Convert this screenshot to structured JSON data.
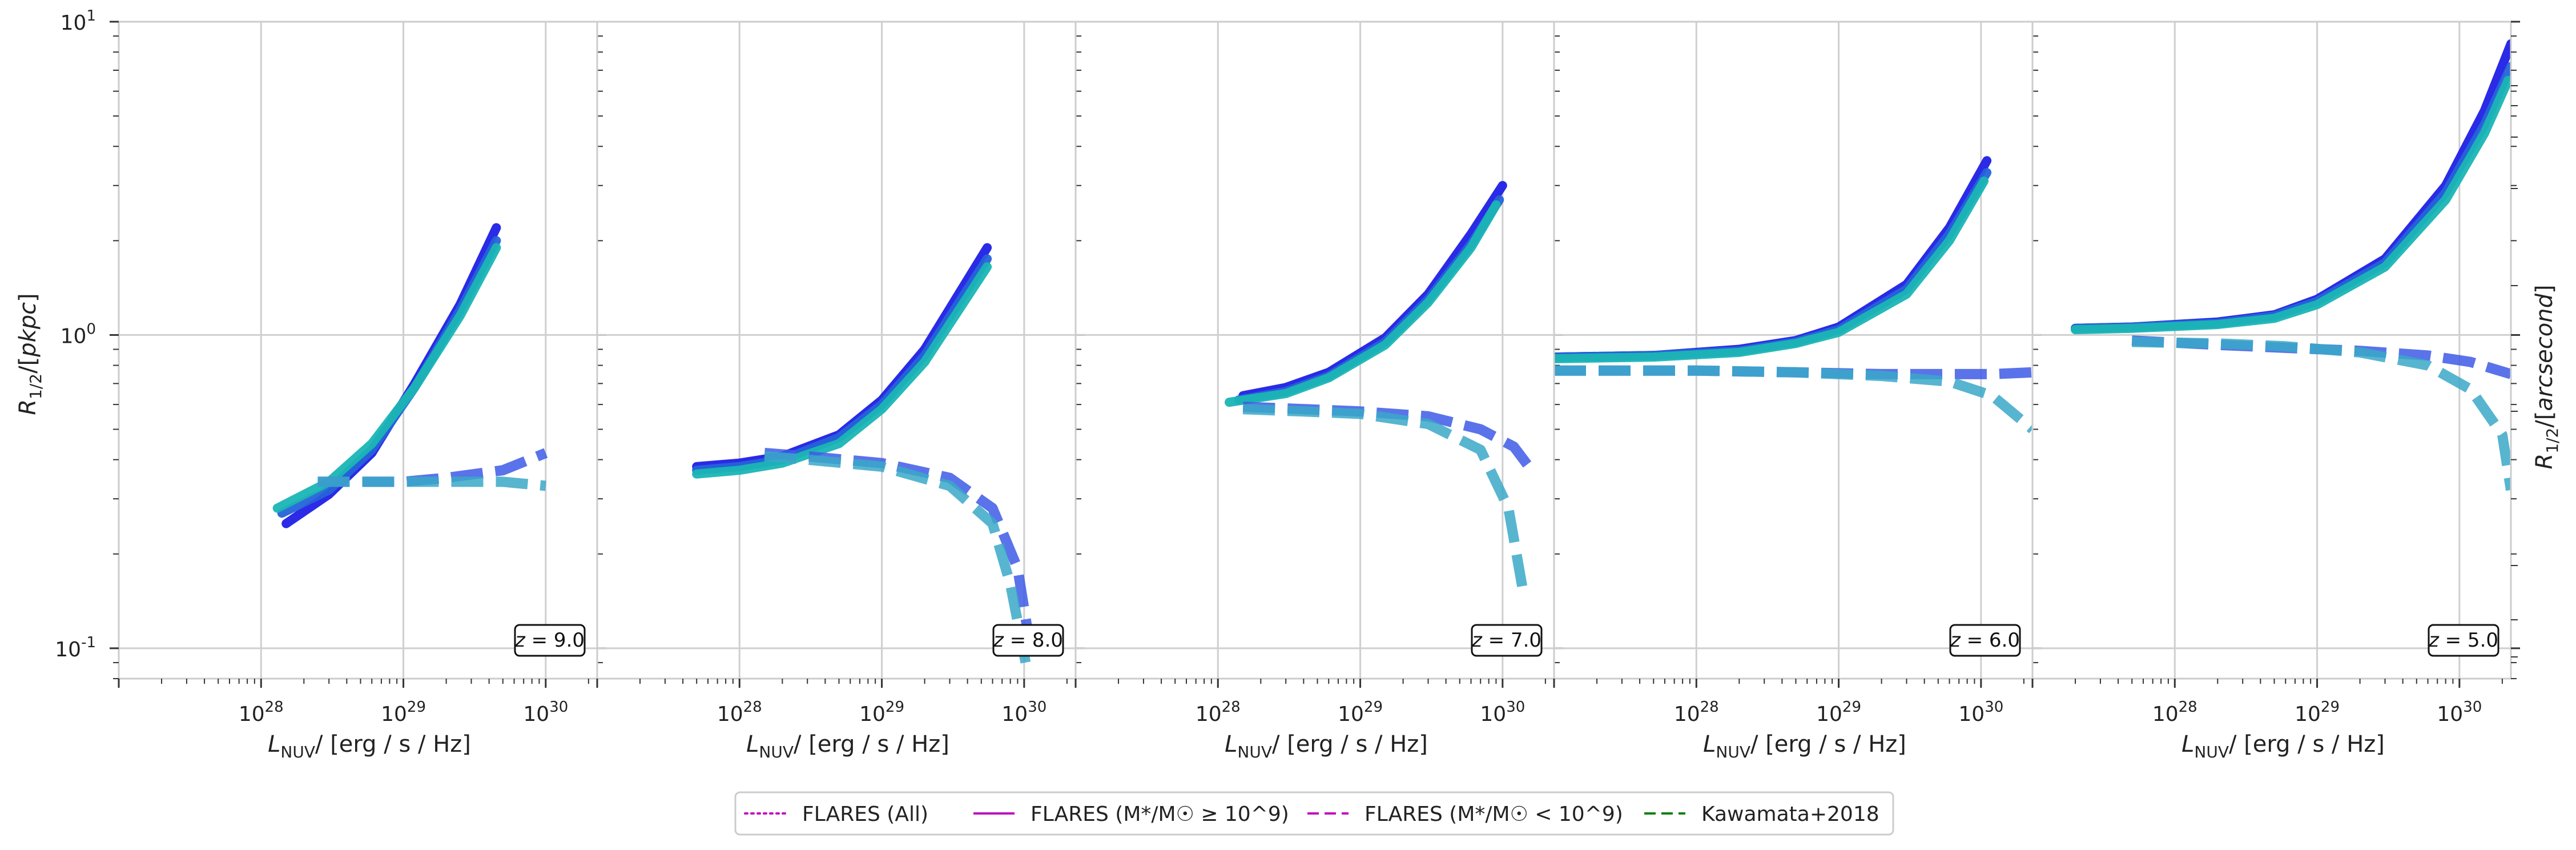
{
  "figure": {
    "ylabel_left": "R_1/2/[pkpc]",
    "ylabel_right": "R_1/2/[arcsecond]",
    "xlabel": "L_NUV/ [erg / s / Hz]"
  },
  "chart_data": [
    {
      "type": "line",
      "annotation": "z = 9.0",
      "xscale": "log",
      "yscale": "log",
      "xlim": [
        1e+27,
        2.3e+30
      ],
      "ylim": [
        0.08,
        10
      ],
      "grid": true,
      "xticks": [
        "10^28",
        "10^29",
        "10^30"
      ],
      "yticks": [
        "10^-1",
        "10^0",
        "10^1"
      ],
      "series": [
        {
          "color": "#1f1fe6",
          "style": "solid",
          "x": [
            1.5e+28,
            3e+28,
            6e+28,
            1.2e+29,
            2.5e+29,
            4.5e+29
          ],
          "y": [
            0.25,
            0.31,
            0.42,
            0.7,
            1.25,
            2.2
          ]
        },
        {
          "color": "#2563d9",
          "style": "solid",
          "x": [
            1.4e+28,
            3e+28,
            6e+28,
            1.2e+29,
            2.5e+29,
            4.5e+29
          ],
          "y": [
            0.27,
            0.32,
            0.43,
            0.68,
            1.2,
            2.0
          ]
        },
        {
          "color": "#1ab5b5",
          "style": "solid",
          "x": [
            1.3e+28,
            3e+28,
            6e+28,
            1.2e+29,
            2.5e+29,
            4.5e+29
          ],
          "y": [
            0.28,
            0.34,
            0.45,
            0.68,
            1.15,
            1.9
          ]
        },
        {
          "color": "#3d5be6",
          "style": "dashed",
          "x": [
            2.5e+28,
            5e+28,
            1e+29,
            2e+29,
            5e+29,
            1e+30
          ],
          "y": [
            0.34,
            0.34,
            0.34,
            0.35,
            0.37,
            0.42
          ]
        },
        {
          "color": "#3aa8c8",
          "style": "dashed",
          "x": [
            2.5e+28,
            5e+28,
            1e+29,
            2e+29,
            5e+29,
            1e+30
          ],
          "y": [
            0.34,
            0.34,
            0.34,
            0.34,
            0.34,
            0.33
          ]
        }
      ]
    },
    {
      "type": "line",
      "annotation": "z = 8.0",
      "xscale": "log",
      "yscale": "log",
      "xlim": [
        1e+27,
        2.3e+30
      ],
      "ylim": [
        0.08,
        10
      ],
      "grid": true,
      "xticks": [
        "10^28",
        "10^29",
        "10^30"
      ],
      "yticks": [],
      "series": [
        {
          "color": "#1f1fe6",
          "style": "solid",
          "x": [
            5e+27,
            1e+28,
            2e+28,
            5e+28,
            1e+29,
            2e+29,
            5.5e+29
          ],
          "y": [
            0.38,
            0.39,
            0.41,
            0.48,
            0.62,
            0.9,
            1.9
          ]
        },
        {
          "color": "#2563d9",
          "style": "solid",
          "x": [
            5e+27,
            1e+28,
            2e+28,
            5e+28,
            1e+29,
            2e+29,
            5.5e+29
          ],
          "y": [
            0.37,
            0.38,
            0.4,
            0.47,
            0.6,
            0.86,
            1.75
          ]
        },
        {
          "color": "#1ab5b5",
          "style": "solid",
          "x": [
            5e+27,
            1e+28,
            2e+28,
            5e+28,
            1e+29,
            2e+29,
            5.5e+29
          ],
          "y": [
            0.36,
            0.37,
            0.39,
            0.45,
            0.58,
            0.82,
            1.65
          ]
        },
        {
          "color": "#3d5be6",
          "style": "dashed",
          "x": [
            1.5e+28,
            3e+28,
            1e+29,
            3e+29,
            6e+29,
            9e+29,
            1.15e+30
          ],
          "y": [
            0.42,
            0.41,
            0.39,
            0.35,
            0.28,
            0.18,
            0.09
          ]
        },
        {
          "color": "#3aa8c8",
          "style": "dashed",
          "x": [
            1.5e+28,
            3e+28,
            1e+29,
            3e+29,
            6e+29,
            8e+29,
            1.05e+30
          ],
          "y": [
            0.41,
            0.4,
            0.38,
            0.33,
            0.25,
            0.16,
            0.085
          ]
        }
      ]
    },
    {
      "type": "line",
      "annotation": "z = 7.0",
      "xscale": "log",
      "yscale": "log",
      "xlim": [
        1e+27,
        2.3e+30
      ],
      "ylim": [
        0.08,
        10
      ],
      "grid": true,
      "xticks": [
        "10^28",
        "10^29",
        "10^30"
      ],
      "yticks": [],
      "series": [
        {
          "color": "#1f1fe6",
          "style": "solid",
          "x": [
            1.5e+28,
            3e+28,
            6e+28,
            1.5e+29,
            3e+29,
            6e+29,
            1e+30
          ],
          "y": [
            0.64,
            0.68,
            0.76,
            0.98,
            1.35,
            2.1,
            3.0
          ]
        },
        {
          "color": "#2563d9",
          "style": "solid",
          "x": [
            1.4e+28,
            3e+28,
            6e+28,
            1.5e+29,
            3e+29,
            6e+29,
            9.5e+29
          ],
          "y": [
            0.62,
            0.66,
            0.74,
            0.95,
            1.3,
            1.95,
            2.7
          ]
        },
        {
          "color": "#1ab5b5",
          "style": "solid",
          "x": [
            1.2e+28,
            3e+28,
            6e+28,
            1.5e+29,
            3e+29,
            6e+29,
            9e+29
          ],
          "y": [
            0.61,
            0.65,
            0.73,
            0.93,
            1.27,
            1.9,
            2.6
          ]
        },
        {
          "color": "#3d5be6",
          "style": "dashed",
          "x": [
            1.5e+28,
            4e+28,
            1e+29,
            3e+29,
            7e+29,
            1.2e+30,
            1.6e+30
          ],
          "y": [
            0.59,
            0.58,
            0.57,
            0.55,
            0.5,
            0.44,
            0.37
          ]
        },
        {
          "color": "#3aa8c8",
          "style": "dashed",
          "x": [
            1.5e+28,
            4e+28,
            1e+29,
            3e+29,
            7e+29,
            1.1e+30,
            1.4e+30
          ],
          "y": [
            0.58,
            0.57,
            0.56,
            0.52,
            0.43,
            0.28,
            0.15
          ]
        }
      ]
    },
    {
      "type": "line",
      "annotation": "z = 6.0",
      "xscale": "log",
      "yscale": "log",
      "xlim": [
        1e+27,
        2.3e+30
      ],
      "ylim": [
        0.08,
        10
      ],
      "grid": true,
      "xticks": [
        "10^28",
        "10^29",
        "10^30"
      ],
      "yticks": [],
      "series": [
        {
          "color": "#1f1fe6",
          "style": "solid",
          "x": [
            1e+27,
            5e+27,
            2e+28,
            5e+28,
            1e+29,
            3e+29,
            6e+29,
            1.1e+30
          ],
          "y": [
            0.85,
            0.86,
            0.9,
            0.96,
            1.06,
            1.45,
            2.2,
            3.6
          ]
        },
        {
          "color": "#2563d9",
          "style": "solid",
          "x": [
            1e+27,
            5e+27,
            2e+28,
            5e+28,
            1e+29,
            3e+29,
            6e+29,
            1.1e+30
          ],
          "y": [
            0.85,
            0.86,
            0.89,
            0.95,
            1.04,
            1.4,
            2.1,
            3.3
          ]
        },
        {
          "color": "#1ab5b5",
          "style": "solid",
          "x": [
            1e+27,
            5e+27,
            2e+28,
            5e+28,
            1e+29,
            3e+29,
            6e+29,
            1.05e+30
          ],
          "y": [
            0.84,
            0.85,
            0.88,
            0.94,
            1.02,
            1.35,
            2.0,
            3.1
          ]
        },
        {
          "color": "#3d5be6",
          "style": "dashed",
          "x": [
            1e+27,
            1e+28,
            5e+28,
            2e+29,
            6e+29,
            1.2e+30,
            2.3e+30
          ],
          "y": [
            0.77,
            0.77,
            0.76,
            0.75,
            0.75,
            0.75,
            0.76
          ]
        },
        {
          "color": "#3aa8c8",
          "style": "dashed",
          "x": [
            1e+27,
            1e+28,
            5e+28,
            2e+29,
            6e+29,
            1.2e+30,
            2.3e+30
          ],
          "y": [
            0.77,
            0.77,
            0.76,
            0.74,
            0.71,
            0.64,
            0.5
          ]
        }
      ]
    },
    {
      "type": "line",
      "annotation": "z = 5.0",
      "xscale": "log",
      "yscale": "log",
      "xlim": [
        1e+27,
        2.3e+30
      ],
      "ylim": [
        0.08,
        10
      ],
      "grid": true,
      "xticks": [
        "10^28",
        "10^29",
        "10^30"
      ],
      "yticks": [],
      "series": [
        {
          "color": "#1f1fe6",
          "style": "solid",
          "x": [
            2e+27,
            5e+27,
            2e+28,
            5e+28,
            1e+29,
            3e+29,
            8e+29,
            1.5e+30,
            2.3e+30
          ],
          "y": [
            1.05,
            1.06,
            1.1,
            1.16,
            1.3,
            1.75,
            3.0,
            5.2,
            8.5
          ]
        },
        {
          "color": "#2563d9",
          "style": "solid",
          "x": [
            2e+27,
            5e+27,
            2e+28,
            5e+28,
            1e+29,
            3e+29,
            8e+29,
            1.5e+30,
            2.3e+30
          ],
          "y": [
            1.05,
            1.06,
            1.09,
            1.15,
            1.28,
            1.7,
            2.85,
            4.7,
            7.2
          ]
        },
        {
          "color": "#1ab5b5",
          "style": "solid",
          "x": [
            2e+27,
            5e+27,
            2e+28,
            5e+28,
            1e+29,
            3e+29,
            8e+29,
            1.5e+30,
            2.2e+30
          ],
          "y": [
            1.04,
            1.05,
            1.08,
            1.13,
            1.25,
            1.65,
            2.7,
            4.4,
            6.5
          ]
        },
        {
          "color": "#3d5be6",
          "style": "dashed",
          "x": [
            5e+27,
            2e+28,
            6e+28,
            2e+29,
            6e+29,
            1.2e+30,
            2.3e+30
          ],
          "y": [
            0.96,
            0.93,
            0.91,
            0.89,
            0.86,
            0.82,
            0.75
          ]
        },
        {
          "color": "#3aa8c8",
          "style": "dashed",
          "x": [
            5e+27,
            2e+28,
            6e+28,
            2e+29,
            6e+29,
            1.2e+30,
            2e+30,
            2.3e+30
          ],
          "y": [
            0.95,
            0.94,
            0.92,
            0.88,
            0.8,
            0.67,
            0.48,
            0.32
          ]
        }
      ]
    }
  ],
  "legend": {
    "placement": "bottom-center",
    "items": [
      {
        "label": "FLARES (All)",
        "color": "#c010c0",
        "style": "dotted"
      },
      {
        "label": "FLARES (M*/M☉ ≥ 10^9)",
        "color": "#c010c0",
        "style": "solid"
      },
      {
        "label": "FLARES (M*/M☉ < 10^9)",
        "color": "#c010c0",
        "style": "dashed"
      },
      {
        "label": "Kawamata+2018",
        "color": "#108010",
        "style": "dashed"
      }
    ]
  }
}
